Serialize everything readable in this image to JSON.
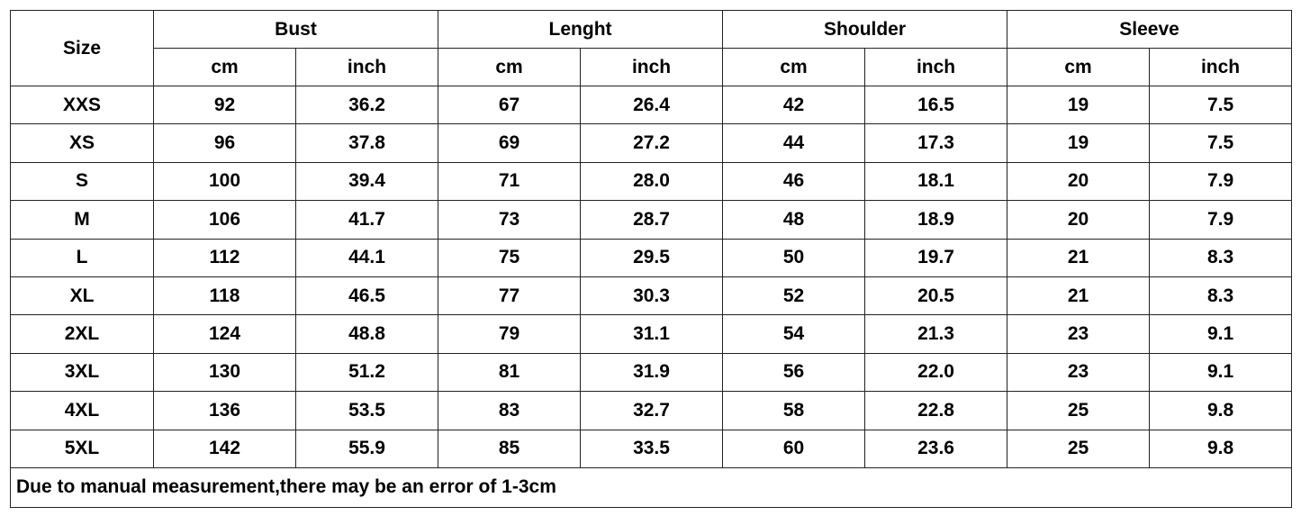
{
  "table": {
    "size_header": "Size",
    "groups": [
      "Bust",
      "Lenght",
      "Shoulder",
      "Sleeve"
    ],
    "units": [
      "cm",
      "inch"
    ],
    "rows": [
      [
        "XXS",
        "92",
        "36.2",
        "67",
        "26.4",
        "42",
        "16.5",
        "19",
        "7.5"
      ],
      [
        "XS",
        "96",
        "37.8",
        "69",
        "27.2",
        "44",
        "17.3",
        "19",
        "7.5"
      ],
      [
        "S",
        "100",
        "39.4",
        "71",
        "28.0",
        "46",
        "18.1",
        "20",
        "7.9"
      ],
      [
        "M",
        "106",
        "41.7",
        "73",
        "28.7",
        "48",
        "18.9",
        "20",
        "7.9"
      ],
      [
        "L",
        "112",
        "44.1",
        "75",
        "29.5",
        "50",
        "19.7",
        "21",
        "8.3"
      ],
      [
        "XL",
        "118",
        "46.5",
        "77",
        "30.3",
        "52",
        "20.5",
        "21",
        "8.3"
      ],
      [
        "2XL",
        "124",
        "48.8",
        "79",
        "31.1",
        "54",
        "21.3",
        "23",
        "9.1"
      ],
      [
        "3XL",
        "130",
        "51.2",
        "81",
        "31.9",
        "56",
        "22.0",
        "23",
        "9.1"
      ],
      [
        "4XL",
        "136",
        "53.5",
        "83",
        "32.7",
        "58",
        "22.8",
        "25",
        "9.8"
      ],
      [
        "5XL",
        "142",
        "55.9",
        "85",
        "33.5",
        "60",
        "23.6",
        "25",
        "9.8"
      ]
    ],
    "footnote": "Due to manual measurement,there may be an error of 1-3cm"
  }
}
